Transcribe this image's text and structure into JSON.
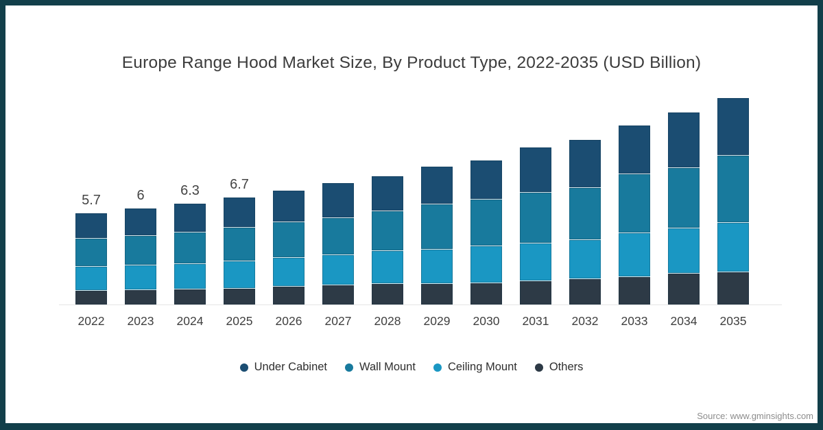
{
  "source": {
    "text": "Source: www.gminsights.com"
  },
  "colors": {
    "frame": "#123f4a",
    "axis_line": "#e4e4e4",
    "title_text": "#3c3c3c",
    "tick_text": "#3f3f3f",
    "source_text": "#8c8c8c"
  },
  "chart_data": {
    "type": "bar",
    "stacked": true,
    "title": "Europe Range Hood Market Size, By Product Type, 2022-2035 (USD Billion)",
    "unit": "USD Billion",
    "gridlines": false,
    "legend_position": "bottom",
    "ylim": [
      0,
      13
    ],
    "categories": [
      "2022",
      "2023",
      "2024",
      "2025",
      "2026",
      "2027",
      "2028",
      "2029",
      "2030",
      "2031",
      "2032",
      "2033",
      "2034",
      "2035"
    ],
    "series": [
      {
        "name": "Under Cabinet",
        "color": "#1b4d72",
        "values": [
          1.6,
          1.7,
          1.8,
          1.9,
          1.95,
          2.2,
          2.15,
          2.35,
          2.45,
          2.8,
          3.0,
          3.05,
          3.45,
          3.6
        ]
      },
      {
        "name": "Wall Mount",
        "color": "#187a9d",
        "values": [
          1.75,
          1.85,
          1.95,
          2.1,
          2.25,
          2.3,
          2.5,
          2.8,
          2.9,
          3.2,
          3.25,
          3.7,
          3.8,
          4.2
        ]
      },
      {
        "name": "Ceiling Mount",
        "color": "#1a97c3",
        "values": [
          1.5,
          1.55,
          1.6,
          1.7,
          1.8,
          1.9,
          2.05,
          2.15,
          2.3,
          2.35,
          2.45,
          2.75,
          2.8,
          3.1
        ]
      },
      {
        "name": "Others",
        "color": "#2d3a46",
        "values": [
          0.85,
          0.9,
          0.95,
          1.0,
          1.1,
          1.2,
          1.3,
          1.3,
          1.35,
          1.45,
          1.6,
          1.7,
          1.95,
          2.0
        ]
      }
    ],
    "stack_order_bottom_to_top": [
      "Others",
      "Ceiling Mount",
      "Wall Mount",
      "Under Cabinet"
    ],
    "totals": [
      5.7,
      6.0,
      6.3,
      6.7,
      7.1,
      7.6,
      8.0,
      8.6,
      9.0,
      9.8,
      10.3,
      11.2,
      12.0,
      12.9
    ],
    "bar_total_labels": [
      "5.7",
      "6",
      "6.3",
      "6.7",
      "",
      "",
      "",
      "",
      "",
      "",
      "",
      "",
      "",
      ""
    ]
  }
}
